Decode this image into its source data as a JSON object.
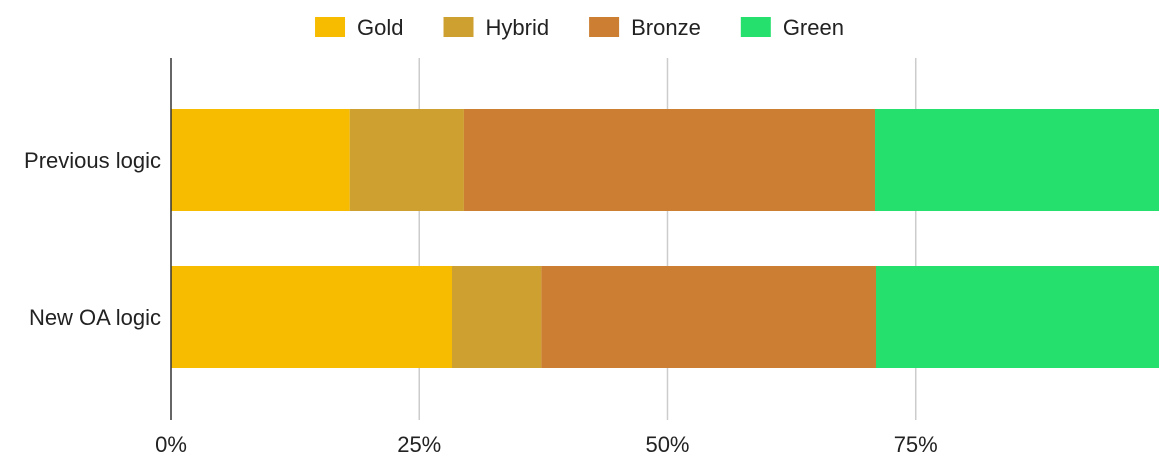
{
  "chart_data": {
    "type": "bar",
    "orientation": "horizontal",
    "stacked": "percent",
    "categories": [
      "Previous logic",
      "New OA logic"
    ],
    "series": [
      {
        "name": "Gold",
        "color": "#F7BC00",
        "values": [
          18.0,
          28.3
        ]
      },
      {
        "name": "Hybrid",
        "color": "#CEA030",
        "values": [
          11.5,
          9.0
        ]
      },
      {
        "name": "Bronze",
        "color": "#CC7F33",
        "values": [
          41.4,
          33.7
        ]
      },
      {
        "name": "Green",
        "color": "#26E06D",
        "values": [
          29.1,
          29.0
        ]
      }
    ],
    "x_ticks": [
      "0%",
      "25%",
      "50%",
      "75%"
    ],
    "xlim": [
      0,
      100
    ],
    "grid": "vertical",
    "legend_position": "top",
    "title": "",
    "xlabel": "",
    "ylabel": ""
  }
}
